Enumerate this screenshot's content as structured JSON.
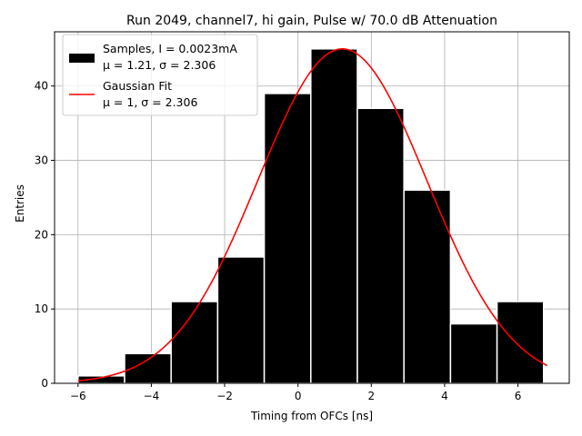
{
  "chart_data": {
    "type": "bar",
    "title": "Run 2049, channel7, hi gain, Pulse w/ 70.0 dB Attenuation",
    "xlabel": "Timing from OFCs [ns]",
    "ylabel": "Entries",
    "xlim": [
      -6.64,
      7.4
    ],
    "ylim": [
      0,
      47.3
    ],
    "xticks": [
      -6,
      -4,
      -2,
      0,
      2,
      4,
      6
    ],
    "yticks": [
      0,
      10,
      20,
      30,
      40
    ],
    "grid": true,
    "legend_position": "top-left",
    "histogram": {
      "name": "Samples, I = 0.0023mA",
      "stats_label": "μ = 1.21, σ = 2.306",
      "bins": [
        {
          "left": -6.0,
          "right": -4.73,
          "count": 1
        },
        {
          "left": -4.73,
          "right": -3.46,
          "count": 4
        },
        {
          "left": -3.46,
          "right": -2.19,
          "count": 11
        },
        {
          "left": -2.19,
          "right": -0.92,
          "count": 17
        },
        {
          "left": -0.92,
          "right": 0.35,
          "count": 39
        },
        {
          "left": 0.35,
          "right": 1.62,
          "count": 45
        },
        {
          "left": 1.62,
          "right": 2.89,
          "count": 37
        },
        {
          "left": 2.89,
          "right": 4.16,
          "count": 26
        },
        {
          "left": 4.16,
          "right": 5.43,
          "count": 8
        },
        {
          "left": 5.43,
          "right": 6.7,
          "count": 11
        }
      ],
      "color": "#000000"
    },
    "fit": {
      "name": "Gaussian Fit",
      "stats_label": "μ = 1, σ = 2.306",
      "mu": 1.21,
      "sigma": 2.306,
      "amplitude": 45.0,
      "x_range": [
        -6.0,
        6.8
      ],
      "color": "#ff0000"
    }
  }
}
